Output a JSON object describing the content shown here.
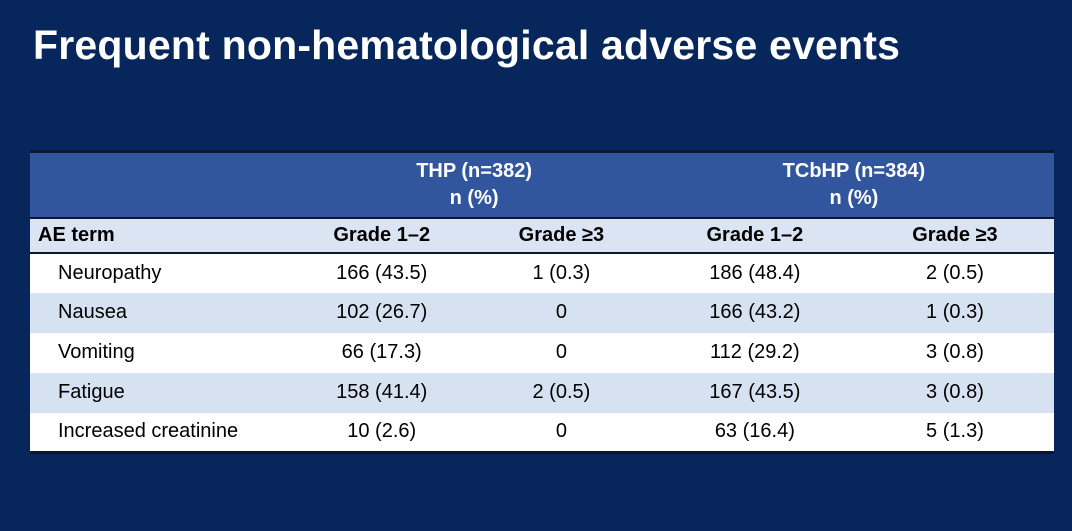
{
  "slide": {
    "title": "Frequent non-hematological adverse events"
  },
  "colors": {
    "slide_background": "#07275C",
    "group_header_band": "#31569E",
    "subheader_row": "#DBE4F2",
    "alt_data_row": "#D6E1F2",
    "data_row": "#FFFFFF",
    "dark_border": "#0C1631",
    "title_text": "#FFFFFF",
    "table_text": "#000000"
  },
  "table": {
    "groups": [
      {
        "line1": "THP (n=382)",
        "line2": "n (%)"
      },
      {
        "line1": "TCbHP (n=384)",
        "line2": "n (%)"
      }
    ],
    "column_headers": [
      "AE term",
      "Grade 1–2",
      "Grade ≥3",
      "Grade 1–2",
      "Grade ≥3"
    ],
    "rows": [
      {
        "label": "Neuropathy",
        "values": [
          "166 (43.5)",
          "1 (0.3)",
          "186 (48.4)",
          "2 (0.5)"
        ]
      },
      {
        "label": "Nausea",
        "values": [
          "102 (26.7)",
          "0",
          "166 (43.2)",
          "1 (0.3)"
        ]
      },
      {
        "label": "Vomiting",
        "values": [
          "66 (17.3)",
          "0",
          "112 (29.2)",
          "3 (0.8)"
        ]
      },
      {
        "label": "Fatigue",
        "values": [
          "158 (41.4)",
          "2 (0.5)",
          "167 (43.5)",
          "3 (0.8)"
        ]
      },
      {
        "label": "Increased creatinine",
        "values": [
          "10 (2.6)",
          "0",
          "63 (16.4)",
          "5 (1.3)"
        ]
      }
    ]
  },
  "chart_data": {
    "type": "table",
    "title": "Frequent non-hematological adverse events",
    "column_groups": [
      "",
      "THP (n=382) n (%)",
      "TCbHP (n=384) n (%)"
    ],
    "columns": [
      "AE term",
      "THP Grade 1-2",
      "THP Grade >=3",
      "TCbHP Grade 1-2",
      "TCbHP Grade >=3"
    ],
    "rows": [
      [
        "Neuropathy",
        "166 (43.5)",
        "1 (0.3)",
        "186 (48.4)",
        "2 (0.5)"
      ],
      [
        "Nausea",
        "102 (26.7)",
        "0",
        "166 (43.2)",
        "1 (0.3)"
      ],
      [
        "Vomiting",
        "66 (17.3)",
        "0",
        "112 (29.2)",
        "3 (0.8)"
      ],
      [
        "Fatigue",
        "158 (41.4)",
        "2 (0.5)",
        "167 (43.5)",
        "3 (0.8)"
      ],
      [
        "Increased creatinine",
        "10 (2.6)",
        "0",
        "63 (16.4)",
        "5 (1.3)"
      ]
    ]
  }
}
